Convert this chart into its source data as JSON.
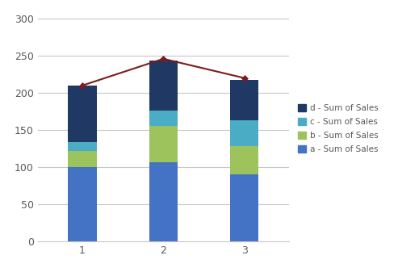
{
  "categories": [
    1,
    2,
    3
  ],
  "a_values": [
    100,
    106,
    90
  ],
  "b_values": [
    22,
    50,
    38
  ],
  "c_values": [
    12,
    20,
    35
  ],
  "d_values": [
    76,
    68,
    55
  ],
  "line_values": [
    210,
    246,
    220
  ],
  "bar_color_a": "#4472C4",
  "bar_color_b": "#9DC35D",
  "bar_color_c": "#4BACC6",
  "bar_color_d": "#1F3864",
  "line_color": "#7B1C1C",
  "legend_labels": [
    "d - Sum of Sales",
    "c - Sum of Sales",
    "b - Sum of Sales",
    "a - Sum of Sales"
  ],
  "ylim": [
    0,
    300
  ],
  "yticks": [
    0,
    50,
    100,
    150,
    200,
    250,
    300
  ],
  "background_color": "#FFFFFF",
  "plot_bg_color": "#FFFFFF",
  "grid_color": "#C8C8C8",
  "bar_width": 0.35,
  "tick_label_color": "#595959",
  "tick_label_fontsize": 9
}
